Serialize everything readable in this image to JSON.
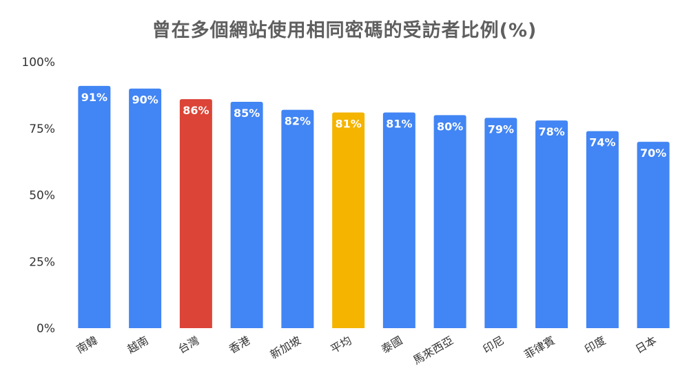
{
  "chart_data": {
    "type": "bar",
    "title": "曾在多個網站使用相同密碼的受訪者比例(%)",
    "xlabel": "",
    "ylabel": "",
    "ylim": [
      0,
      100
    ],
    "yticks": [
      0,
      25,
      50,
      75,
      100
    ],
    "ytick_labels": [
      "0%",
      "25%",
      "50%",
      "75%",
      "100%"
    ],
    "grid": false,
    "legend": "none",
    "categories": [
      "南韓",
      "越南",
      "台灣",
      "香港",
      "新加坡",
      "平均",
      "泰國",
      "馬來西亞",
      "印尼",
      "菲律賓",
      "印度",
      "日本"
    ],
    "values": [
      91,
      90,
      86,
      85,
      82,
      81,
      81,
      80,
      79,
      78,
      74,
      70
    ],
    "data_labels": [
      "91%",
      "90%",
      "86%",
      "85%",
      "82%",
      "81%",
      "81%",
      "80%",
      "79%",
      "78%",
      "74%",
      "70%"
    ],
    "colors": [
      "#4285f4",
      "#4285f4",
      "#db4437",
      "#4285f4",
      "#4285f4",
      "#f4b400",
      "#4285f4",
      "#4285f4",
      "#4285f4",
      "#4285f4",
      "#4285f4",
      "#4285f4"
    ]
  }
}
